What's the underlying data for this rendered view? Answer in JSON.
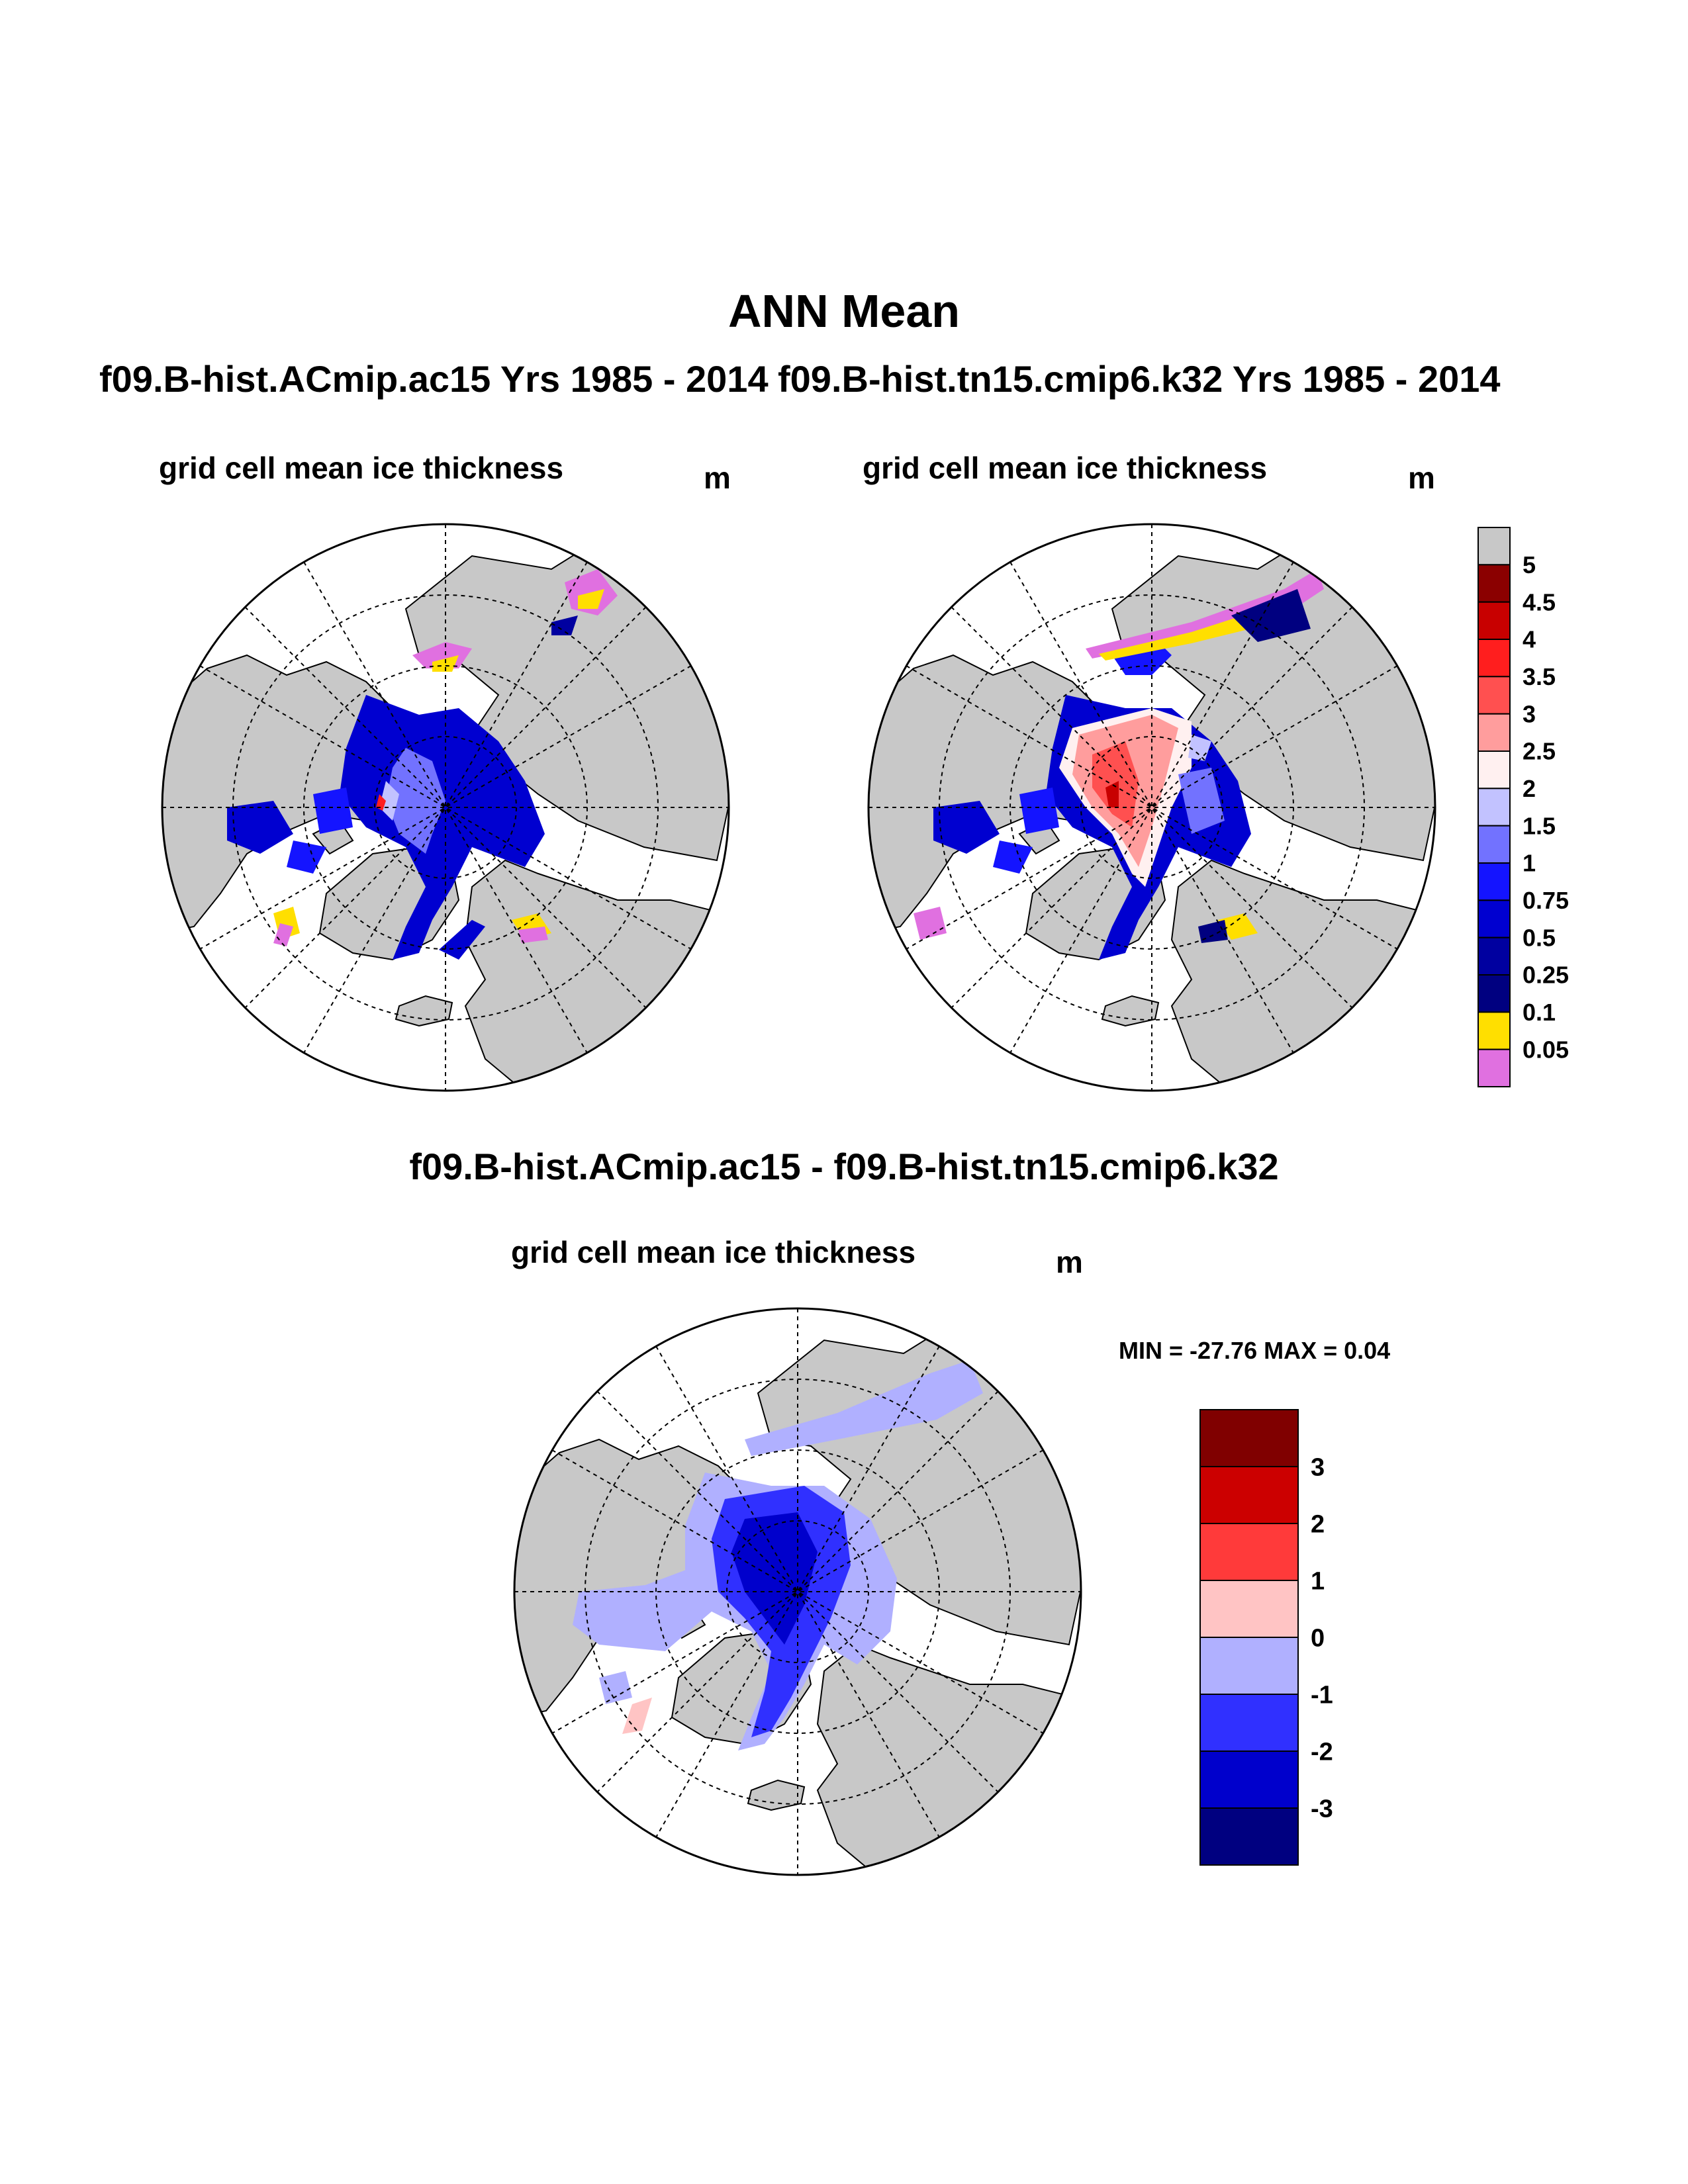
{
  "title": "ANN Mean",
  "panels": {
    "left": {
      "header": "f09.B-hist.ACmip.ac15  Yrs 1985 - 2014",
      "subtitle": "grid cell mean ice thickness",
      "unit": "m"
    },
    "right": {
      "header": "f09.B-hist.tn15.cmip6.k32  Yrs 1985 - 2014",
      "subtitle": "grid cell mean ice thickness",
      "unit": "m"
    },
    "diff": {
      "header": "f09.B-hist.ACmip.ac15 - f09.B-hist.tn15.cmip6.k32",
      "subtitle": "grid cell mean ice thickness",
      "unit": "m",
      "stats": "MIN = -27.76 MAX =   0.04"
    }
  },
  "colorbar_main": {
    "labels": [
      "5",
      "4.5",
      "4",
      "3.5",
      "3",
      "2.5",
      "2",
      "1.5",
      "1",
      "0.75",
      "0.5",
      "0.25",
      "0.1",
      "0.05"
    ],
    "colors": [
      "#c8c8c8",
      "#8b0000",
      "#c80000",
      "#ff1e1e",
      "#ff5050",
      "#ff9d9d",
      "#fff0f0",
      "#c2c2ff",
      "#7272ff",
      "#1414ff",
      "#0000d0",
      "#0000a0",
      "#000080",
      "#ffdf00",
      "#e070e0"
    ]
  },
  "colorbar_diff": {
    "labels": [
      "3",
      "2",
      "1",
      "0",
      "-1",
      "-2",
      "-3"
    ],
    "colors": [
      "#800000",
      "#cc0000",
      "#ff3a3a",
      "#ffc4c4",
      "#b0b0ff",
      "#3030ff",
      "#0000cc",
      "#000080"
    ]
  },
  "map_colors": {
    "land": "#c8c8c8",
    "ocean": "#ffffff"
  }
}
